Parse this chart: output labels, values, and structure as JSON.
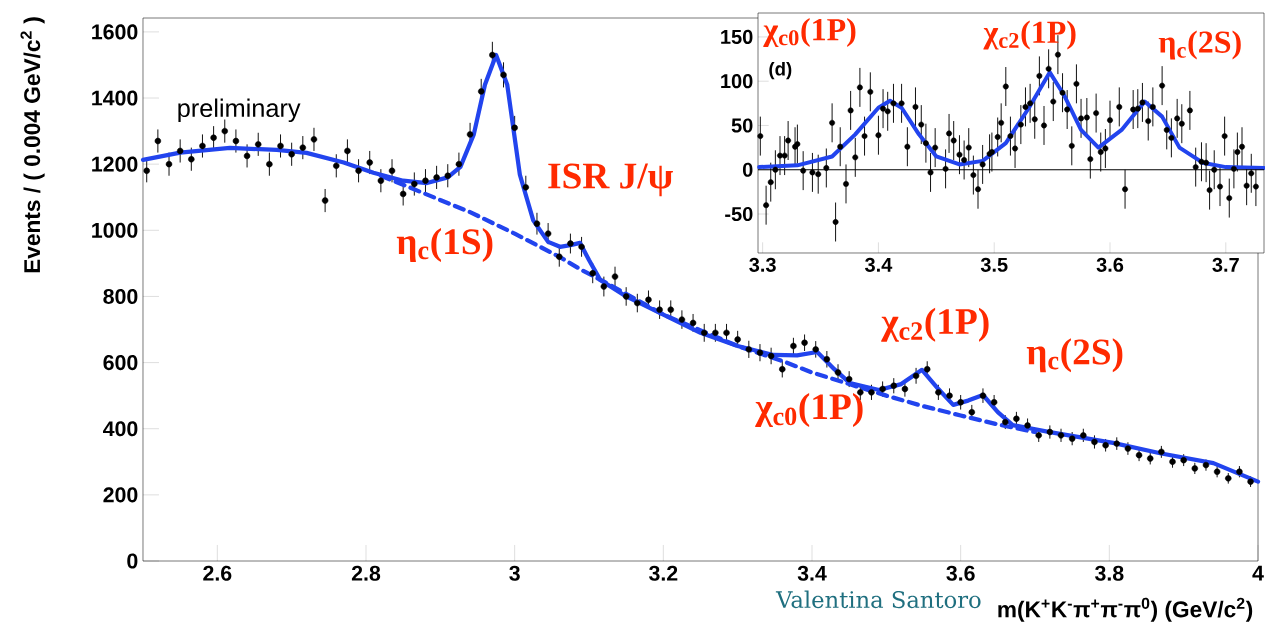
{
  "chart_data": [
    {
      "type": "scatter",
      "xlabel": "m(K$^{+}$K$^{-}$π$^{+}$π$^{-}$π$^{0}$) (GeV/c$^{2}$)",
      "ylabel": "Events / ( 0.004 GeV/c$^{2}$ )",
      "xlim": [
        2.5,
        4.0
      ],
      "ylim": [
        0,
        1642
      ],
      "xticks": [
        2.6,
        2.8,
        3,
        3.2,
        3.4,
        3.6,
        3.8,
        4
      ],
      "yticks": [
        0,
        200,
        400,
        600,
        800,
        1000,
        1200,
        1400,
        1600
      ],
      "series": [
        {
          "color": "#000000",
          "x": [
            2.505,
            2.52,
            2.535,
            2.55,
            2.565,
            2.58,
            2.595,
            2.61,
            2.625,
            2.64,
            2.655,
            2.67,
            2.685,
            2.7,
            2.715,
            2.73,
            2.745,
            2.76,
            2.775,
            2.79,
            2.805,
            2.82,
            2.835,
            2.85,
            2.865,
            2.88,
            2.895,
            2.91,
            2.925,
            2.94,
            2.955,
            2.97,
            2.985,
            3.0,
            3.015,
            3.03,
            3.045,
            3.06,
            3.075,
            3.09,
            3.105,
            3.12,
            3.135,
            3.15,
            3.165,
            3.18,
            3.195,
            3.21,
            3.225,
            3.24,
            3.255,
            3.27,
            3.285,
            3.3,
            3.315,
            3.33,
            3.345,
            3.36,
            3.375,
            3.39,
            3.405,
            3.42,
            3.435,
            3.45,
            3.465,
            3.48,
            3.495,
            3.51,
            3.525,
            3.54,
            3.555,
            3.57,
            3.585,
            3.6,
            3.615,
            3.63,
            3.645,
            3.66,
            3.675,
            3.69,
            3.705,
            3.72,
            3.735,
            3.75,
            3.765,
            3.78,
            3.795,
            3.81,
            3.825,
            3.84,
            3.855,
            3.87,
            3.885,
            3.9,
            3.915,
            3.93,
            3.945,
            3.96,
            3.975,
            3.99
          ],
          "values": [
            1180,
            1270,
            1200,
            1240,
            1215,
            1255,
            1280,
            1300,
            1270,
            1225,
            1260,
            1200,
            1255,
            1230,
            1250,
            1275,
            1090,
            1195,
            1240,
            1180,
            1205,
            1150,
            1180,
            1110,
            1140,
            1150,
            1160,
            1165,
            1200,
            1290,
            1420,
            1530,
            1470,
            1310,
            1130,
            1020,
            990,
            920,
            960,
            950,
            870,
            830,
            860,
            800,
            780,
            790,
            760,
            760,
            730,
            720,
            690,
            690,
            690,
            670,
            640,
            630,
            620,
            580,
            650,
            660,
            640,
            610,
            570,
            550,
            510,
            510,
            520,
            530,
            520,
            560,
            580,
            510,
            500,
            480,
            450,
            500,
            480,
            420,
            430,
            410,
            380,
            390,
            380,
            370,
            380,
            360,
            350,
            355,
            340,
            320,
            310,
            330,
            300,
            305,
            280,
            290,
            270,
            250,
            270,
            240
          ],
          "errors": [
            35,
            35,
            35,
            35,
            35,
            35,
            35,
            35,
            35,
            35,
            35,
            35,
            35,
            35,
            35,
            35,
            35,
            35,
            35,
            35,
            35,
            35,
            35,
            35,
            35,
            35,
            35,
            35,
            35,
            35,
            38,
            40,
            38,
            36,
            35,
            33,
            32,
            30,
            30,
            30,
            30,
            30,
            30,
            28,
            28,
            28,
            28,
            28,
            28,
            27,
            27,
            27,
            27,
            26,
            26,
            26,
            25,
            25,
            25,
            25,
            25,
            25,
            25,
            24,
            23,
            23,
            23,
            23,
            23,
            24,
            24,
            23,
            22,
            22,
            22,
            22,
            22,
            21,
            21,
            21,
            20,
            20,
            20,
            20,
            20,
            20,
            19,
            19,
            19,
            18,
            18,
            18,
            18,
            18,
            17,
            17,
            17,
            16,
            17,
            16
          ]
        },
        {
          "type": "line",
          "color": "#2244ee",
          "line_style": "solid",
          "x": [
            2.5,
            2.55,
            2.617,
            2.68,
            2.72,
            2.77,
            2.81,
            2.85,
            2.882,
            2.91,
            2.927,
            2.945,
            2.96,
            2.975,
            2.99,
            3.007,
            3.025,
            3.045,
            3.061,
            3.075,
            3.088,
            3.1,
            3.115,
            3.15,
            3.2,
            3.25,
            3.3,
            3.348,
            3.38,
            3.407,
            3.43,
            3.451,
            3.49,
            3.52,
            3.548,
            3.57,
            3.59,
            3.61,
            3.63,
            3.65,
            3.67,
            3.72,
            3.805,
            3.87,
            3.94,
            4.0
          ],
          "values": [
            1213,
            1235,
            1249,
            1243,
            1234,
            1205,
            1174,
            1150,
            1143,
            1160,
            1192,
            1290,
            1440,
            1530,
            1440,
            1168,
            1030,
            965,
            950,
            955,
            962,
            910,
            850,
            800,
            745,
            690,
            650,
            623,
            622,
            632,
            580,
            538,
            517,
            535,
            578,
            520,
            472,
            485,
            502,
            450,
            411,
            390,
            357,
            325,
            296,
            240
          ]
        },
        {
          "type": "line",
          "color": "#2244ee",
          "line_style": "dashed",
          "x": [
            2.82,
            2.88,
            2.94,
            3.0,
            3.06,
            3.09,
            3.12,
            3.2,
            3.3,
            3.36,
            3.4,
            3.45,
            3.5,
            3.55,
            3.6,
            3.65,
            3.7
          ],
          "values": [
            1165,
            1110,
            1055,
            990,
            920,
            880,
            845,
            745,
            650,
            605,
            570,
            535,
            500,
            468,
            440,
            413,
            390
          ]
        }
      ],
      "annotations": [
        "preliminary",
        "ISR J/ψ",
        "η$_{c}$(1S)",
        "χ$_{c0}$(1P)",
        "χ$_{c2}$(1P)",
        "η$_{c}$(2S)",
        "Valentina Santoro"
      ]
    },
    {
      "type": "scatter",
      "xlim": [
        3.296,
        3.733
      ],
      "ylim": [
        -94,
        177
      ],
      "xticks": [
        3.3,
        3.4,
        3.5,
        3.6,
        3.7
      ],
      "yticks": [
        -50,
        0,
        50,
        100,
        150
      ],
      "ref_lines": [
        {
          "axis": "y",
          "value": 0,
          "color": "#000000"
        }
      ],
      "series": [
        {
          "color": "#000000",
          "x": [
            3.298,
            3.303,
            3.307,
            3.311,
            3.315,
            3.319,
            3.322,
            3.328,
            3.33,
            3.335,
            3.343,
            3.348,
            3.355,
            3.36,
            3.363,
            3.367,
            3.372,
            3.376,
            3.38,
            3.384,
            3.388,
            3.393,
            3.4,
            3.404,
            3.408,
            3.413,
            3.42,
            3.425,
            3.432,
            3.437,
            3.441,
            3.445,
            3.449,
            3.458,
            3.461,
            3.465,
            3.47,
            3.474,
            3.478,
            3.482,
            3.486,
            3.49,
            3.496,
            3.498,
            3.503,
            3.506,
            3.51,
            3.514,
            3.518,
            3.523,
            3.527,
            3.531,
            3.535,
            3.539,
            3.543,
            3.547,
            3.551,
            3.555,
            3.559,
            3.563,
            3.567,
            3.571,
            3.575,
            3.58,
            3.583,
            3.588,
            3.592,
            3.596,
            3.6,
            3.608,
            3.613,
            3.62,
            3.624,
            3.628,
            3.633,
            3.637,
            3.645,
            3.649,
            3.653,
            3.658,
            3.662,
            3.669,
            3.674,
            3.679,
            3.683,
            3.686,
            3.69,
            3.695,
            3.699,
            3.703,
            3.707,
            3.71,
            3.714,
            3.718,
            3.722,
            3.726
          ],
          "values": [
            38,
            -40,
            -14,
            0,
            16,
            16,
            33,
            26,
            29,
            -1,
            -3,
            -5,
            2,
            53,
            -59,
            26,
            -16,
            67,
            14,
            93,
            38,
            88,
            39,
            69,
            66,
            75,
            75,
            26,
            71,
            51,
            30,
            -3,
            25,
            1,
            41,
            33,
            17,
            11,
            25,
            -6,
            -22,
            6,
            18,
            20,
            37,
            53,
            94,
            38,
            24,
            51,
            71,
            75,
            57,
            106,
            50,
            114,
            77,
            130,
            87,
            68,
            27,
            97,
            58,
            59,
            12,
            64,
            20,
            24,
            56,
            71,
            -22,
            68,
            69,
            76,
            55,
            71,
            95,
            45,
            36,
            58,
            52,
            67,
            3,
            9,
            8,
            -23,
            0,
            -19,
            38,
            -32,
            1,
            20,
            26,
            -18,
            -4,
            -19
          ],
          "errors": [
            22,
            22,
            22,
            22,
            22,
            22,
            22,
            22,
            22,
            22,
            22,
            22,
            22,
            22,
            22,
            22,
            22,
            22,
            22,
            22,
            22,
            22,
            22,
            22,
            22,
            22,
            22,
            22,
            22,
            22,
            22,
            22,
            22,
            22,
            22,
            22,
            22,
            22,
            22,
            22,
            22,
            22,
            22,
            22,
            22,
            22,
            22,
            22,
            22,
            22,
            22,
            22,
            22,
            22,
            22,
            22,
            22,
            22,
            22,
            22,
            22,
            22,
            22,
            22,
            22,
            22,
            22,
            22,
            22,
            22,
            22,
            22,
            22,
            22,
            22,
            22,
            22,
            22,
            22,
            22,
            22,
            22,
            22,
            22,
            22,
            22,
            22,
            22,
            22,
            22,
            22,
            22,
            22,
            22,
            22,
            22
          ]
        },
        {
          "type": "line",
          "color": "#2244ee",
          "line_style": "solid",
          "x": [
            3.297,
            3.33,
            3.36,
            3.38,
            3.4,
            3.41,
            3.42,
            3.435,
            3.45,
            3.47,
            3.49,
            3.51,
            3.53,
            3.548,
            3.56,
            3.575,
            3.59,
            3.61,
            3.63,
            3.645,
            3.66,
            3.68,
            3.7,
            3.733
          ],
          "values": [
            3,
            5,
            15,
            40,
            70,
            78,
            70,
            40,
            15,
            6,
            10,
            30,
            70,
            110,
            85,
            45,
            25,
            45,
            77,
            60,
            25,
            8,
            3,
            2
          ]
        }
      ],
      "annotations": [
        "(d)",
        "χ$_{c0}$(1P)",
        "χ$_{c2}$(1P)",
        "η$_{c}$(2S)"
      ]
    }
  ]
}
